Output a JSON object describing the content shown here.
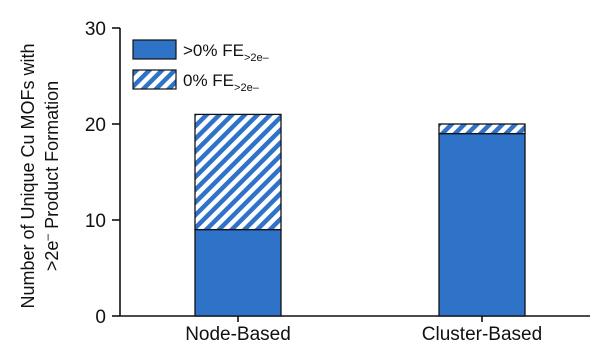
{
  "colors": {
    "solid": "#2f73c9",
    "hatch": "#2f73c9",
    "outline": "#111111"
  },
  "chart_data": {
    "type": "bar",
    "stacked": true,
    "categories": [
      "Node-Based",
      "Cluster-Based"
    ],
    "series": [
      {
        "name_main": ">0% FE",
        "name_sub": ">2e–",
        "style": "solid",
        "values": [
          9,
          19
        ]
      },
      {
        "name_main": "0% FE",
        "name_sub": ">2e–",
        "style": "hatched",
        "values": [
          12,
          1
        ]
      }
    ],
    "ylabel_line1": "Number of Unique Cu MOFs with",
    "ylabel_line2_main": ">2e",
    "ylabel_line2_sup": "–",
    "ylabel_line2_rest": " Product Formation",
    "ylim": [
      0,
      30
    ],
    "yticks": [
      "0",
      "10",
      "20",
      "30"
    ],
    "legend_position": "top-left",
    "grid": false
  }
}
